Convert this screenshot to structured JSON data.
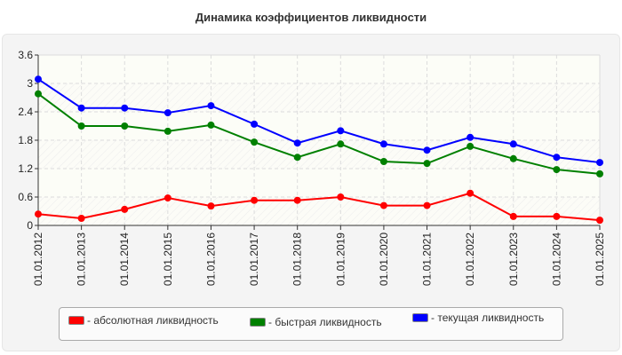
{
  "chart_data": {
    "type": "line",
    "title": "Динамика коэффициентов ликвидности",
    "xlabel": "",
    "ylabel": "",
    "categories": [
      "01.01.2012",
      "01.01.2013",
      "01.01.2014",
      "01.01.2015",
      "01.01.2016",
      "01.01.2017",
      "01.01.2018",
      "01.01.2019",
      "01.01.2020",
      "01.01.2021",
      "01.01.2022",
      "01.01.2023",
      "01.01.2024",
      "01.01.2025"
    ],
    "ylim": [
      0,
      3.6
    ],
    "yticks": [
      "0",
      "0.6",
      "1.2",
      "1.8",
      "2.4",
      "3",
      "3.6"
    ],
    "grid": true,
    "legend_position": "bottom",
    "series": [
      {
        "name": "- абсолютная ликвидность",
        "color": "#ff0000",
        "values": [
          0.24,
          0.15,
          0.34,
          0.58,
          0.41,
          0.53,
          0.53,
          0.6,
          0.42,
          0.42,
          0.68,
          0.19,
          0.19,
          0.11
        ]
      },
      {
        "name": "- быстрая ликвидность",
        "color": "#008000",
        "values": [
          2.78,
          2.1,
          2.1,
          1.99,
          2.12,
          1.76,
          1.44,
          1.72,
          1.35,
          1.31,
          1.67,
          1.41,
          1.18,
          1.09
        ]
      },
      {
        "name": "- текущая ликвидность",
        "color": "#0000ff",
        "values": [
          3.09,
          2.48,
          2.48,
          2.38,
          2.53,
          2.14,
          1.74,
          2.0,
          1.72,
          1.59,
          1.86,
          1.72,
          1.44,
          1.33
        ]
      }
    ]
  }
}
